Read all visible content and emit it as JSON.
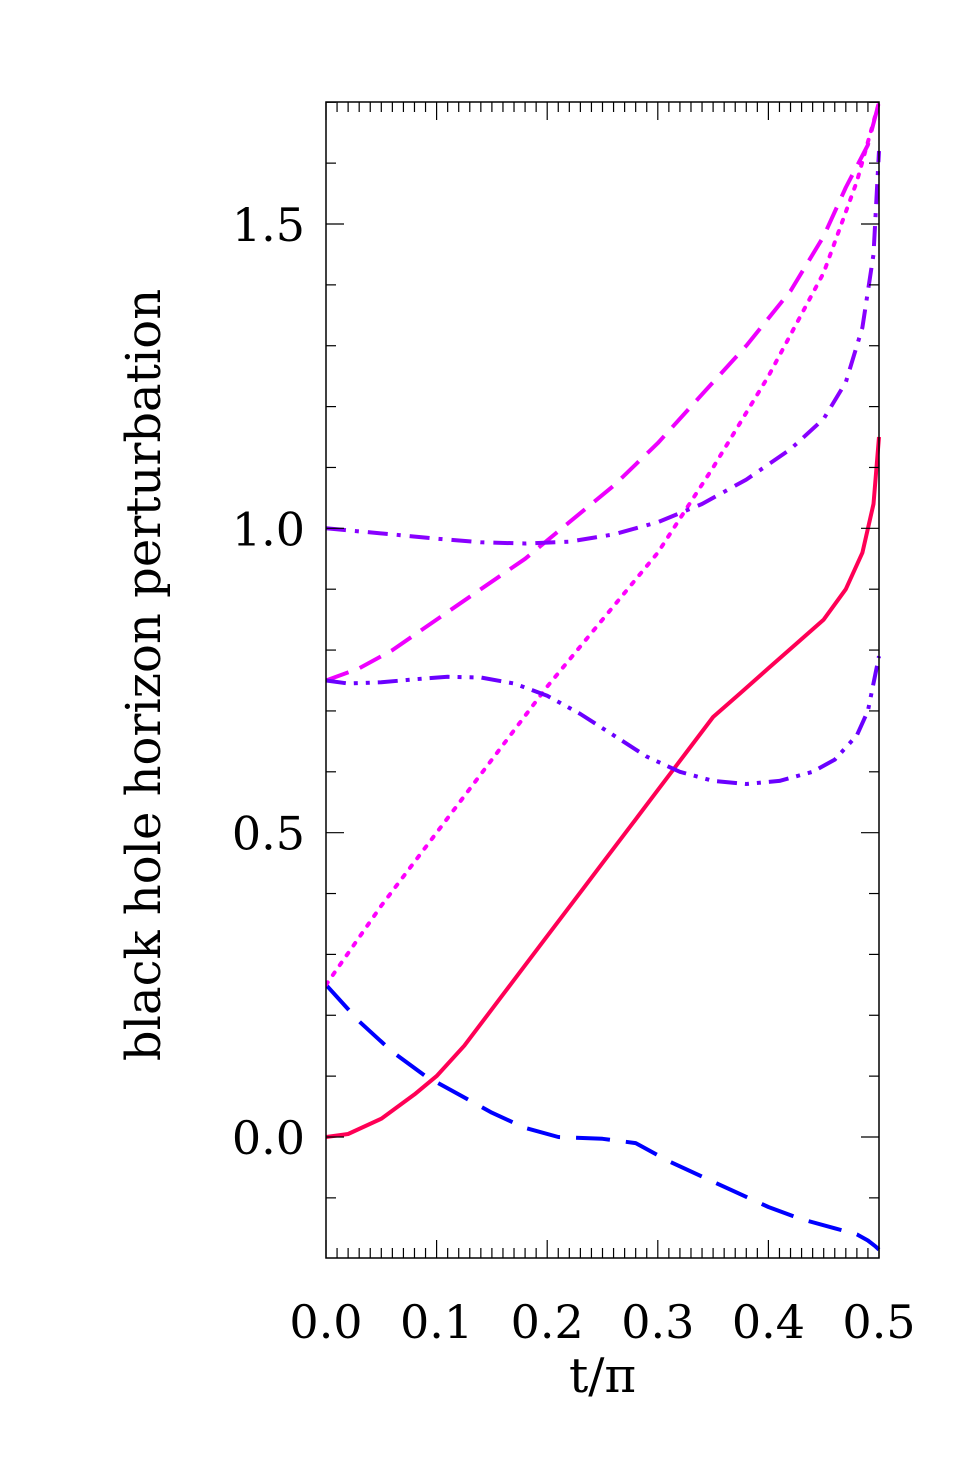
{
  "chart_data": {
    "type": "line",
    "xlabel": "t/π",
    "ylabel": "black hole horizon perturbation",
    "xlim": [
      0.0,
      0.5
    ],
    "ylim": [
      -0.2,
      1.7
    ],
    "x_ticks": [
      "0.0",
      "0.1",
      "0.2",
      "0.3",
      "0.4",
      "0.5"
    ],
    "y_ticks": [
      "0.0",
      "0.5",
      "1.0",
      "1.5"
    ],
    "grid": false,
    "series": [
      {
        "color": "#ff0055",
        "style": "solid",
        "points": [
          [
            0.0,
            0.0
          ],
          [
            0.02,
            0.005
          ],
          [
            0.05,
            0.03
          ],
          [
            0.08,
            0.07
          ],
          [
            0.1,
            0.1
          ],
          [
            0.125,
            0.15
          ],
          [
            0.15,
            0.21
          ],
          [
            0.175,
            0.27
          ],
          [
            0.2,
            0.33
          ],
          [
            0.225,
            0.39
          ],
          [
            0.25,
            0.45
          ],
          [
            0.275,
            0.51
          ],
          [
            0.3,
            0.57
          ],
          [
            0.325,
            0.63
          ],
          [
            0.35,
            0.69
          ],
          [
            0.375,
            0.73
          ],
          [
            0.4,
            0.77
          ],
          [
            0.425,
            0.81
          ],
          [
            0.45,
            0.85
          ],
          [
            0.47,
            0.9
          ],
          [
            0.485,
            0.96
          ],
          [
            0.495,
            1.04
          ],
          [
            0.5,
            1.15
          ]
        ]
      },
      {
        "color": "#0000ff",
        "style": "long-dash",
        "points": [
          [
            0.0,
            0.25
          ],
          [
            0.03,
            0.19
          ],
          [
            0.06,
            0.14
          ],
          [
            0.09,
            0.1
          ],
          [
            0.12,
            0.07
          ],
          [
            0.15,
            0.04
          ],
          [
            0.18,
            0.015
          ],
          [
            0.21,
            0.0
          ],
          [
            0.25,
            -0.003
          ],
          [
            0.28,
            -0.01
          ],
          [
            0.31,
            -0.04
          ],
          [
            0.34,
            -0.065
          ],
          [
            0.37,
            -0.09
          ],
          [
            0.4,
            -0.115
          ],
          [
            0.43,
            -0.135
          ],
          [
            0.46,
            -0.15
          ],
          [
            0.48,
            -0.16
          ],
          [
            0.49,
            -0.17
          ],
          [
            0.497,
            -0.18
          ],
          [
            0.5,
            -0.185
          ]
        ]
      },
      {
        "color": "#ff00ff",
        "style": "dotted",
        "points": [
          [
            0.0,
            0.25
          ],
          [
            0.05,
            0.38
          ],
          [
            0.1,
            0.5
          ],
          [
            0.15,
            0.62
          ],
          [
            0.2,
            0.74
          ],
          [
            0.25,
            0.85
          ],
          [
            0.3,
            0.96
          ],
          [
            0.35,
            1.1
          ],
          [
            0.4,
            1.25
          ],
          [
            0.45,
            1.42
          ],
          [
            0.48,
            1.57
          ],
          [
            0.5,
            1.7
          ]
        ]
      },
      {
        "color": "#ee00ff",
        "style": "short-dash",
        "points": [
          [
            0.0,
            0.75
          ],
          [
            0.03,
            0.77
          ],
          [
            0.06,
            0.8
          ],
          [
            0.1,
            0.85
          ],
          [
            0.14,
            0.9
          ],
          [
            0.18,
            0.95
          ],
          [
            0.22,
            1.01
          ],
          [
            0.26,
            1.07
          ],
          [
            0.3,
            1.14
          ],
          [
            0.34,
            1.22
          ],
          [
            0.38,
            1.3
          ],
          [
            0.42,
            1.39
          ],
          [
            0.45,
            1.48
          ],
          [
            0.47,
            1.56
          ],
          [
            0.49,
            1.63
          ],
          [
            0.5,
            1.7
          ]
        ]
      },
      {
        "color": "#8800ff",
        "style": "dash-dot",
        "points": [
          [
            0.0,
            1.0
          ],
          [
            0.03,
            0.995
          ],
          [
            0.06,
            0.99
          ],
          [
            0.1,
            0.983
          ],
          [
            0.14,
            0.977
          ],
          [
            0.18,
            0.975
          ],
          [
            0.22,
            0.978
          ],
          [
            0.26,
            0.99
          ],
          [
            0.3,
            1.01
          ],
          [
            0.34,
            1.04
          ],
          [
            0.38,
            1.08
          ],
          [
            0.42,
            1.13
          ],
          [
            0.45,
            1.18
          ],
          [
            0.47,
            1.24
          ],
          [
            0.485,
            1.33
          ],
          [
            0.495,
            1.45
          ],
          [
            0.5,
            1.62
          ]
        ]
      },
      {
        "color": "#6a00ff",
        "style": "dash-dot-dot",
        "points": [
          [
            0.0,
            0.75
          ],
          [
            0.02,
            0.745
          ],
          [
            0.05,
            0.747
          ],
          [
            0.08,
            0.752
          ],
          [
            0.11,
            0.756
          ],
          [
            0.14,
            0.755
          ],
          [
            0.17,
            0.745
          ],
          [
            0.2,
            0.725
          ],
          [
            0.23,
            0.695
          ],
          [
            0.26,
            0.66
          ],
          [
            0.29,
            0.625
          ],
          [
            0.32,
            0.6
          ],
          [
            0.35,
            0.585
          ],
          [
            0.38,
            0.58
          ],
          [
            0.41,
            0.585
          ],
          [
            0.44,
            0.6
          ],
          [
            0.46,
            0.62
          ],
          [
            0.48,
            0.66
          ],
          [
            0.49,
            0.7
          ],
          [
            0.5,
            0.79
          ]
        ]
      }
    ]
  }
}
